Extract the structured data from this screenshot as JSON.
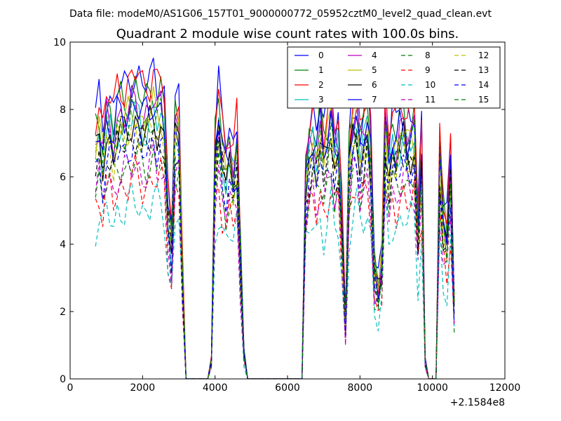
{
  "suptitle": "Data file: modeM0/AS1G06_157T01_9000000772_05952cztM0_level2_quad_clean.evt",
  "chart_data": {
    "type": "line",
    "title": "Quadrant 2 module wise count rates with 100.0s bins.",
    "xlabel": "",
    "ylabel": "",
    "xlim": [
      0,
      12000
    ],
    "ylim": [
      0,
      10
    ],
    "x_offset_label": "+2.1584e8",
    "xticks": [
      0,
      2000,
      4000,
      6000,
      8000,
      10000,
      12000
    ],
    "yticks": [
      0,
      2,
      4,
      6,
      8,
      10
    ],
    "grid": false,
    "legend_position": "top-right",
    "x": [
      700,
      800,
      900,
      1000,
      1100,
      1200,
      1300,
      1400,
      1500,
      1600,
      1700,
      1800,
      1900,
      2000,
      2100,
      2200,
      2300,
      2400,
      2500,
      2600,
      2700,
      2800,
      2900,
      3000,
      3100,
      3200,
      3300,
      3400,
      3500,
      3600,
      3700,
      3800,
      3900,
      4000,
      4100,
      4200,
      4300,
      4400,
      4500,
      4600,
      4700,
      4800,
      4900,
      5000,
      5100,
      5200,
      5300,
      5400,
      5500,
      5600,
      5700,
      5800,
      5900,
      6000,
      6100,
      6200,
      6300,
      6400,
      6500,
      6600,
      6700,
      6800,
      6900,
      7000,
      7100,
      7200,
      7300,
      7400,
      7500,
      7600,
      7700,
      7800,
      7900,
      8000,
      8100,
      8200,
      8300,
      8400,
      8500,
      8600,
      8700,
      8800,
      8900,
      9000,
      9100,
      9200,
      9300,
      9400,
      9500,
      9600,
      9700,
      9800,
      9900,
      10000,
      10100,
      10200,
      10300,
      10400,
      10500,
      10600
    ],
    "series": [
      {
        "name": "0",
        "color": "#0000ff",
        "dash": "solid",
        "scale": 1.0,
        "phase": 0
      },
      {
        "name": "1",
        "color": "#008000",
        "dash": "solid",
        "scale": 0.95,
        "phase": 1
      },
      {
        "name": "2",
        "color": "#ff0000",
        "dash": "solid",
        "scale": 1.0,
        "phase": 2
      },
      {
        "name": "3",
        "color": "#00bfbf",
        "dash": "solid",
        "scale": 0.86,
        "phase": 3
      },
      {
        "name": "4",
        "color": "#bf00bf",
        "dash": "solid",
        "scale": 0.9,
        "phase": 4
      },
      {
        "name": "5",
        "color": "#bfbf00",
        "dash": "solid",
        "scale": 0.88,
        "phase": 5
      },
      {
        "name": "6",
        "color": "#000000",
        "dash": "solid",
        "scale": 0.84,
        "phase": 6
      },
      {
        "name": "7",
        "color": "#0000ff",
        "dash": "solid",
        "scale": 0.9,
        "phase": 7
      },
      {
        "name": "8",
        "color": "#008000",
        "dash": "dashed",
        "scale": 0.72,
        "phase": 8
      },
      {
        "name": "9",
        "color": "#ff0000",
        "dash": "dashed",
        "scale": 0.66,
        "phase": 9
      },
      {
        "name": "10",
        "color": "#00bfbf",
        "dash": "dashed",
        "scale": 0.58,
        "phase": 10
      },
      {
        "name": "11",
        "color": "#bf00bf",
        "dash": "dashed",
        "scale": 0.7,
        "phase": 11
      },
      {
        "name": "12",
        "color": "#bfbf00",
        "dash": "dashed",
        "scale": 0.82,
        "phase": 12
      },
      {
        "name": "13",
        "color": "#000000",
        "dash": "dashed",
        "scale": 0.8,
        "phase": 13
      },
      {
        "name": "14",
        "color": "#0000ff",
        "dash": "dashed",
        "scale": 0.78,
        "phase": 14
      },
      {
        "name": "15",
        "color": "#008000",
        "dash": "dashed",
        "scale": 0.86,
        "phase": 15
      }
    ],
    "base_profile": [
      7.8,
      8.3,
      7.5,
      8.5,
      8.4,
      7.9,
      8.6,
      8.7,
      8.6,
      8.8,
      9.0,
      9.1,
      8.9,
      8.6,
      8.7,
      8.9,
      9.2,
      8.8,
      9.0,
      8.4,
      5.5,
      4.5,
      8.4,
      8.4,
      3.5,
      0,
      0,
      0,
      0,
      0,
      0,
      0,
      0.6,
      7.5,
      8.7,
      7.6,
      7.0,
      7.5,
      6.9,
      7.7,
      4.0,
      0.8,
      0,
      0,
      0,
      0,
      0,
      0,
      0,
      0,
      0,
      0,
      0,
      0,
      0,
      0,
      0,
      0,
      6.6,
      7.6,
      8.0,
      7.4,
      8.3,
      7.4,
      8.0,
      8.7,
      7.5,
      7.8,
      5.1,
      1.8,
      7.2,
      8.5,
      8.8,
      7.6,
      8.0,
      8.7,
      7.3,
      3.5,
      3.0,
      3.8,
      8.4,
      7.1,
      7.9,
      7.6,
      8.2,
      8.4,
      7.9,
      8.0,
      8.2,
      5.0,
      7.4,
      0.6,
      0,
      0,
      0,
      7.2,
      5.2,
      4.6,
      7.0,
      2.5
    ]
  },
  "legend": [
    {
      "label": "0",
      "color": "#0000ff",
      "dash": "solid"
    },
    {
      "label": "1",
      "color": "#008000",
      "dash": "solid"
    },
    {
      "label": "2",
      "color": "#ff0000",
      "dash": "solid"
    },
    {
      "label": "3",
      "color": "#00bfbf",
      "dash": "solid"
    },
    {
      "label": "4",
      "color": "#bf00bf",
      "dash": "solid"
    },
    {
      "label": "5",
      "color": "#bfbf00",
      "dash": "solid"
    },
    {
      "label": "6",
      "color": "#000000",
      "dash": "solid"
    },
    {
      "label": "7",
      "color": "#0000ff",
      "dash": "solid"
    },
    {
      "label": "8",
      "color": "#008000",
      "dash": "dashed"
    },
    {
      "label": "9",
      "color": "#ff0000",
      "dash": "dashed"
    },
    {
      "label": "10",
      "color": "#00bfbf",
      "dash": "dashed"
    },
    {
      "label": "11",
      "color": "#bf00bf",
      "dash": "dashed"
    },
    {
      "label": "12",
      "color": "#bfbf00",
      "dash": "dashed"
    },
    {
      "label": "13",
      "color": "#000000",
      "dash": "dashed"
    },
    {
      "label": "14",
      "color": "#0000ff",
      "dash": "dashed"
    },
    {
      "label": "15",
      "color": "#008000",
      "dash": "dashed"
    }
  ]
}
